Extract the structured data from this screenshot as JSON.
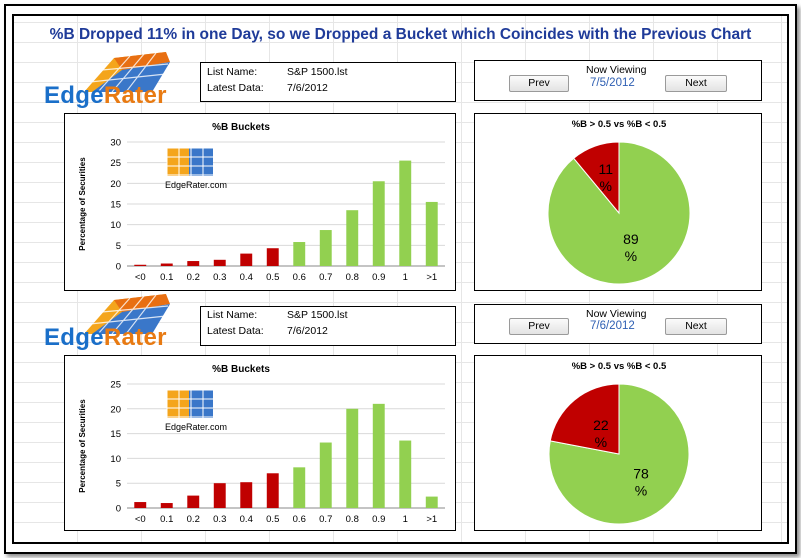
{
  "title": "%B Dropped 11% in one Day, so we Dropped a Bucket which Coincides with the Previous Chart",
  "logo": {
    "edge": "Edge",
    "rater": "Rater",
    "watermark": "EdgeRater.com"
  },
  "colors": {
    "red": "#c00000",
    "green": "#92d050",
    "title_blue": "#1f3b99",
    "date_blue": "#2e5fb3"
  },
  "panels": [
    {
      "info": {
        "list_label": "List Name:",
        "list_value": "S&P 1500.lst",
        "data_label": "Latest Data:",
        "data_value": "7/6/2012"
      },
      "nav": {
        "heading": "Now Viewing",
        "prev": "Prev",
        "date": "7/5/2012",
        "next": "Next"
      },
      "pie_title": "%B > 0.5 vs %B < 0.5",
      "pie_labels": {
        "red_value": "11",
        "green_value": "89",
        "unit": "%"
      }
    },
    {
      "info": {
        "list_label": "List Name:",
        "list_value": "S&P 1500.lst",
        "data_label": "Latest Data:",
        "data_value": "7/6/2012"
      },
      "nav": {
        "heading": "Now Viewing",
        "prev": "Prev",
        "date": "7/6/2012",
        "next": "Next"
      },
      "pie_title": "%B > 0.5 vs %B < 0.5",
      "pie_labels": {
        "red_value": "22",
        "green_value": "78",
        "unit": "%"
      }
    }
  ],
  "chart_data": [
    {
      "type": "bar",
      "title": "%B Buckets",
      "ylabel": "Percentage of Securities",
      "xlabel": "",
      "categories": [
        "<0",
        "0.1",
        "0.2",
        "0.3",
        "0.4",
        "0.5",
        "0.6",
        "0.7",
        "0.8",
        "0.9",
        "1",
        ">1"
      ],
      "values": [
        0.3,
        0.6,
        1.2,
        1.5,
        3.0,
        4.3,
        5.8,
        8.7,
        13.5,
        20.5,
        25.5,
        15.5
      ],
      "colors": [
        "red",
        "red",
        "red",
        "red",
        "red",
        "red",
        "green",
        "green",
        "green",
        "green",
        "green",
        "green"
      ],
      "ylim": [
        0,
        30
      ],
      "yticks": [
        0,
        5,
        10,
        15,
        20,
        25,
        30
      ],
      "grid": true
    },
    {
      "type": "pie",
      "title": "%B > 0.5 vs %B < 0.5",
      "slices": [
        {
          "label": "11 %",
          "value": 11,
          "color": "red"
        },
        {
          "label": "89 %",
          "value": 89,
          "color": "green"
        }
      ]
    },
    {
      "type": "bar",
      "title": "%B Buckets",
      "ylabel": "Percentage of Securities",
      "xlabel": "",
      "categories": [
        "<0",
        "0.1",
        "0.2",
        "0.3",
        "0.4",
        "0.5",
        "0.6",
        "0.7",
        "0.8",
        "0.9",
        "1",
        ">1"
      ],
      "values": [
        1.2,
        1.0,
        2.5,
        5.0,
        5.2,
        7.0,
        8.2,
        13.2,
        20.0,
        21.0,
        13.6,
        2.3
      ],
      "colors": [
        "red",
        "red",
        "red",
        "red",
        "red",
        "red",
        "green",
        "green",
        "green",
        "green",
        "green",
        "green"
      ],
      "ylim": [
        0,
        25
      ],
      "yticks": [
        0,
        5,
        10,
        15,
        20,
        25
      ],
      "grid": true
    },
    {
      "type": "pie",
      "title": "%B > 0.5 vs %B < 0.5",
      "slices": [
        {
          "label": "22 %",
          "value": 22,
          "color": "red"
        },
        {
          "label": "78 %",
          "value": 78,
          "color": "green"
        }
      ]
    }
  ]
}
